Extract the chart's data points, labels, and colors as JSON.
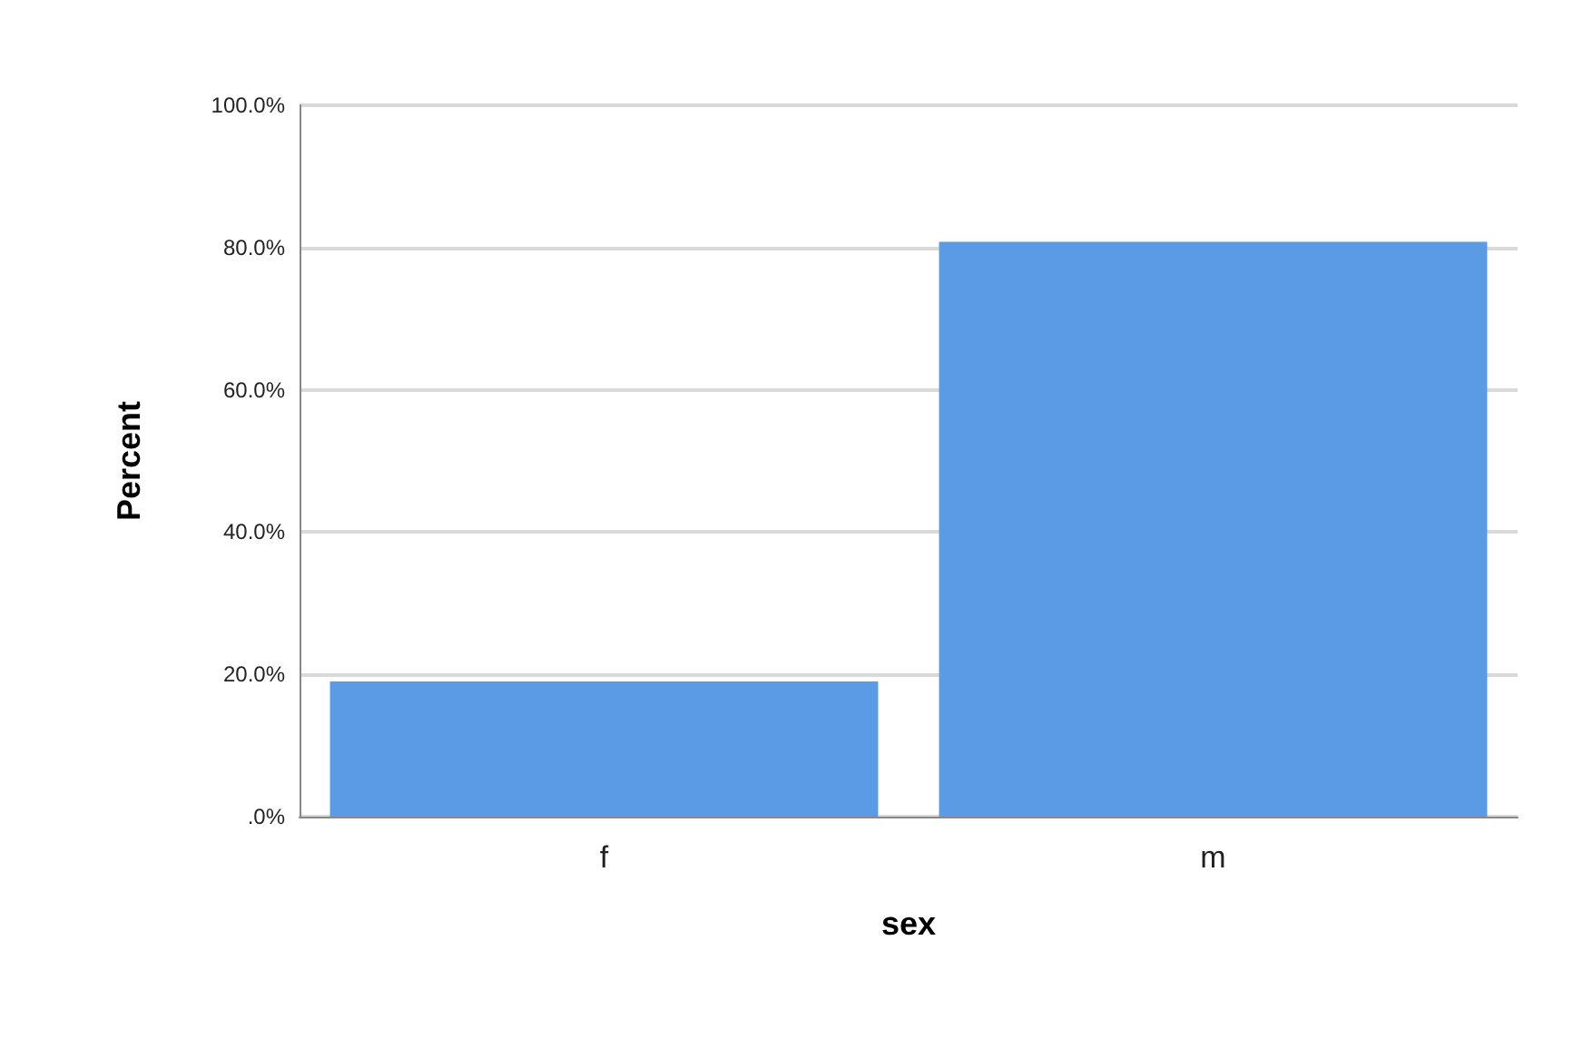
{
  "chart_data": {
    "type": "bar",
    "xlabel": "sex",
    "ylabel": "Percent",
    "categories": [
      "f",
      "m"
    ],
    "values": [
      19.0,
      80.8
    ],
    "color": "#5b9ae5",
    "ylim": [
      0,
      100
    ],
    "yticks": [
      {
        "value": 0,
        "label": ".0%"
      },
      {
        "value": 20,
        "label": "20.0%"
      },
      {
        "value": 40,
        "label": "40.0%"
      },
      {
        "value": 60,
        "label": "60.0%"
      },
      {
        "value": 80,
        "label": "80.0%"
      },
      {
        "value": 100,
        "label": "100.0%"
      }
    ],
    "grid": "y"
  }
}
